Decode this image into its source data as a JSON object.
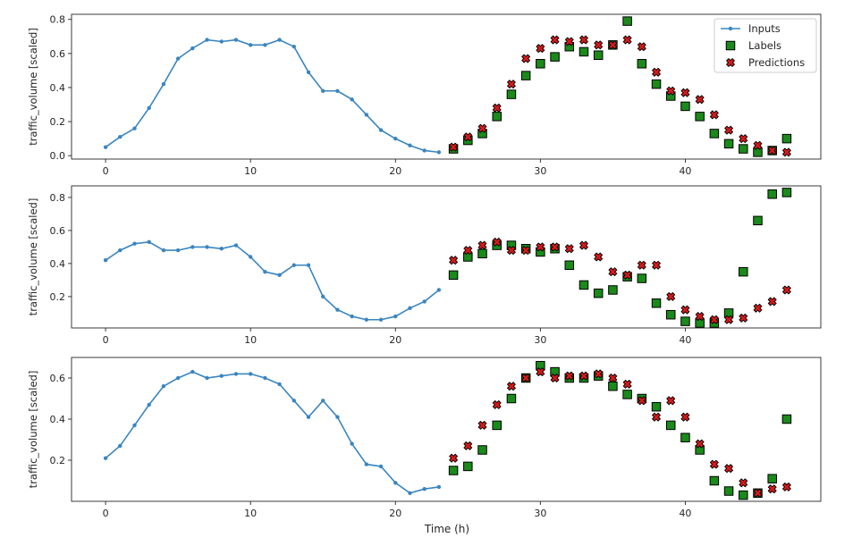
{
  "figure": {
    "xlabel": "Time (h)"
  },
  "legend": {
    "inputs": "Inputs",
    "labels": "Labels",
    "predictions": "Predictions",
    "placement": "upper-right"
  },
  "colors": {
    "inputs": "#3a85c0",
    "labels": "#1a8a1a",
    "predictions": "#d21a1a",
    "axes": "#262626"
  },
  "chart_data": [
    {
      "type": "scatter",
      "ylabel": "traffic_volume [scaled]",
      "xlim": [
        -2.35,
        49.35
      ],
      "ylim": [
        -0.02,
        0.83
      ],
      "xticks": [
        0,
        10,
        20,
        30,
        40
      ],
      "yticks": [
        0.0,
        0.2,
        0.4,
        0.6,
        0.8
      ],
      "ytick_labels": [
        "0.0",
        "0.2",
        "0.4",
        "0.6",
        "0.8"
      ],
      "legend": true,
      "series": [
        {
          "name": "Inputs",
          "type": "line",
          "x_start": 0,
          "values": [
            0.05,
            0.11,
            0.16,
            0.28,
            0.42,
            0.57,
            0.63,
            0.68,
            0.67,
            0.68,
            0.65,
            0.65,
            0.68,
            0.64,
            0.49,
            0.38,
            0.38,
            0.33,
            0.24,
            0.15,
            0.1,
            0.06,
            0.03,
            0.02
          ]
        },
        {
          "name": "Labels",
          "type": "scatter",
          "x_start": 24,
          "values": [
            0.04,
            0.09,
            0.13,
            0.23,
            0.36,
            0.47,
            0.54,
            0.58,
            0.64,
            0.61,
            0.59,
            0.65,
            0.79,
            0.54,
            0.42,
            0.35,
            0.29,
            0.23,
            0.13,
            0.07,
            0.04,
            0.02,
            0.03,
            0.1
          ]
        },
        {
          "name": "Predictions",
          "type": "scatter",
          "x_start": 24,
          "values": [
            0.05,
            0.11,
            0.16,
            0.28,
            0.42,
            0.57,
            0.63,
            0.68,
            0.67,
            0.68,
            0.65,
            0.65,
            0.68,
            0.64,
            0.49,
            0.38,
            0.37,
            0.33,
            0.24,
            0.15,
            0.1,
            0.06,
            0.03,
            0.02
          ]
        }
      ]
    },
    {
      "type": "scatter",
      "ylabel": "traffic_volume [scaled]",
      "xlim": [
        -2.35,
        49.35
      ],
      "ylim": [
        0.01,
        0.87
      ],
      "xticks": [
        0,
        10,
        20,
        30,
        40
      ],
      "yticks": [
        0.2,
        0.4,
        0.6,
        0.8
      ],
      "ytick_labels": [
        "0.2",
        "0.4",
        "0.6",
        "0.8"
      ],
      "legend": false,
      "series": [
        {
          "name": "Inputs",
          "type": "line",
          "x_start": 0,
          "values": [
            0.42,
            0.48,
            0.52,
            0.53,
            0.48,
            0.48,
            0.5,
            0.5,
            0.49,
            0.51,
            0.44,
            0.35,
            0.33,
            0.39,
            0.39,
            0.2,
            0.12,
            0.08,
            0.06,
            0.06,
            0.08,
            0.13,
            0.17,
            0.24
          ]
        },
        {
          "name": "Labels",
          "type": "scatter",
          "x_start": 24,
          "values": [
            0.33,
            0.44,
            0.46,
            0.51,
            0.51,
            0.49,
            0.47,
            0.49,
            0.39,
            0.27,
            0.22,
            0.24,
            0.32,
            0.31,
            0.16,
            0.09,
            0.05,
            0.04,
            0.04,
            0.1,
            0.35,
            0.66,
            0.82,
            0.83
          ]
        },
        {
          "name": "Predictions",
          "type": "scatter",
          "x_start": 24,
          "values": [
            0.42,
            0.48,
            0.51,
            0.53,
            0.48,
            0.48,
            0.5,
            0.5,
            0.49,
            0.51,
            0.44,
            0.35,
            0.33,
            0.39,
            0.39,
            0.2,
            0.12,
            0.08,
            0.06,
            0.06,
            0.07,
            0.13,
            0.17,
            0.24
          ]
        }
      ]
    },
    {
      "type": "scatter",
      "ylabel": "traffic_volume [scaled]",
      "xlim": [
        -2.35,
        49.35
      ],
      "ylim": [
        0.0,
        0.7
      ],
      "xticks": [
        0,
        10,
        20,
        30,
        40
      ],
      "yticks": [
        0.2,
        0.4,
        0.6
      ],
      "ytick_labels": [
        "0.2",
        "0.4",
        "0.6"
      ],
      "legend": false,
      "series": [
        {
          "name": "Inputs",
          "type": "line",
          "x_start": 0,
          "values": [
            0.21,
            0.27,
            0.37,
            0.47,
            0.56,
            0.6,
            0.63,
            0.6,
            0.61,
            0.62,
            0.62,
            0.6,
            0.57,
            0.49,
            0.41,
            0.49,
            0.41,
            0.28,
            0.18,
            0.17,
            0.09,
            0.04,
            0.06,
            0.07
          ]
        },
        {
          "name": "Labels",
          "type": "scatter",
          "x_start": 24,
          "values": [
            0.15,
            0.17,
            0.25,
            0.37,
            0.5,
            0.6,
            0.66,
            0.63,
            0.6,
            0.6,
            0.61,
            0.56,
            0.52,
            0.5,
            0.46,
            0.37,
            0.31,
            0.25,
            0.1,
            0.05,
            0.03,
            0.04,
            0.11,
            0.4
          ]
        },
        {
          "name": "Predictions",
          "type": "scatter",
          "x_start": 24,
          "values": [
            0.21,
            0.27,
            0.37,
            0.47,
            0.56,
            0.6,
            0.63,
            0.6,
            0.61,
            0.61,
            0.62,
            0.6,
            0.57,
            0.49,
            0.41,
            0.49,
            0.41,
            0.28,
            0.18,
            0.16,
            0.09,
            0.04,
            0.06,
            0.07
          ]
        }
      ]
    }
  ]
}
